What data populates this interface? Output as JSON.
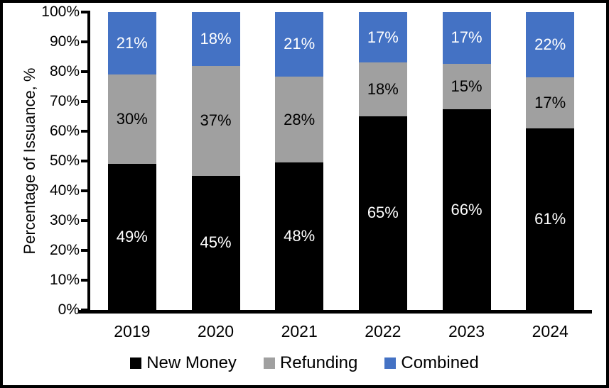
{
  "chart_data": {
    "type": "bar",
    "stacked": true,
    "title": "",
    "xlabel": "",
    "ylabel": "Percentage of Issuance, %",
    "categories": [
      "2019",
      "2020",
      "2021",
      "2022",
      "2023",
      "2024"
    ],
    "series": [
      {
        "name": "New Money",
        "color": "#000000",
        "label_color": "#ffffff",
        "values": [
          49,
          45,
          48,
          65,
          66,
          61
        ]
      },
      {
        "name": "Refunding",
        "color": "#A0A0A0",
        "label_color": "#000000",
        "values": [
          30,
          37,
          28,
          18,
          15,
          17
        ]
      },
      {
        "name": "Combined",
        "color": "#4472C4",
        "label_color": "#ffffff",
        "values": [
          21,
          18,
          21,
          17,
          17,
          22
        ]
      }
    ],
    "value_suffix": "%",
    "y_ticks": [
      "0%",
      "10%",
      "20%",
      "30%",
      "40%",
      "50%",
      "60%",
      "70%",
      "80%",
      "90%",
      "100%"
    ],
    "ylim": [
      0,
      100
    ],
    "grid": false,
    "legend_position": "bottom",
    "frame_color": "#000000"
  }
}
